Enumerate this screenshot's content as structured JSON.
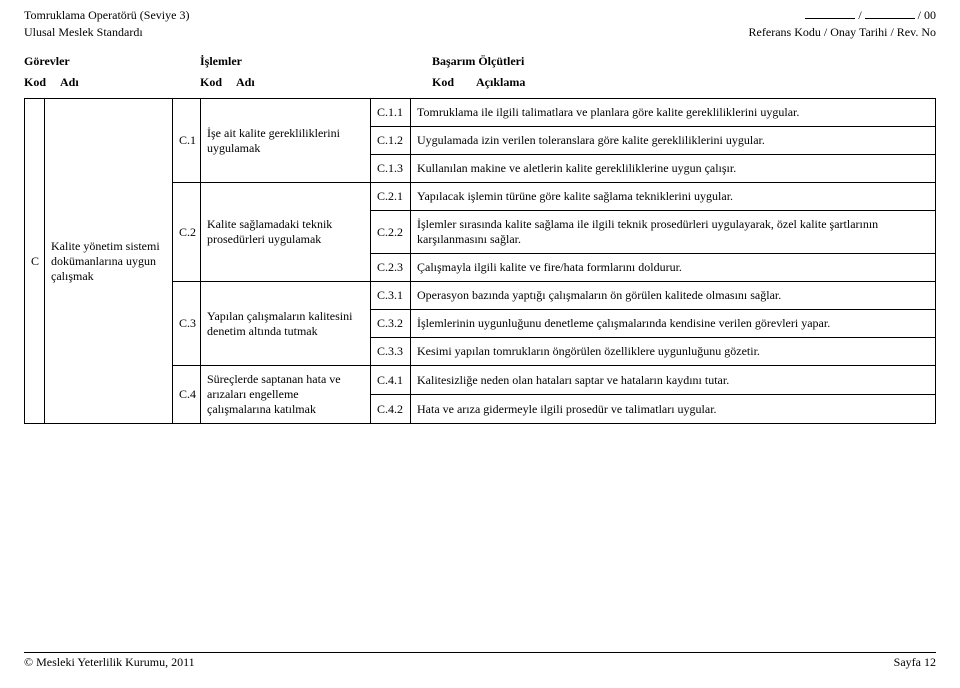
{
  "header": {
    "title_line1": "Tomruklama Operatörü (Seviye 3)",
    "title_line2": "Ulusal Meslek Standardı",
    "right_line1_suffix": " / 00",
    "right_line2": "Referans Kodu / Onay Tarihi / Rev. No"
  },
  "section_labels": {
    "gorevler": "Görevler",
    "islemler": "İşlemler",
    "basarim": "Başarım Ölçütleri",
    "kod": "Kod",
    "adi": "Adı",
    "aciklama": "Açıklama"
  },
  "task": {
    "kod": "C",
    "adi": "Kalite yönetim sistemi dokümanlarına uygun çalışmak"
  },
  "ops": [
    {
      "kod": "C.1",
      "adi": "İşe ait kalite gerekliliklerini uygulamak"
    },
    {
      "kod": "C.2",
      "adi": "Kalite sağlamadaki teknik prosedürleri uygulamak"
    },
    {
      "kod": "C.3",
      "adi": "Yapılan çalışmaların kalitesini denetim altında tutmak"
    },
    {
      "kod": "C.4",
      "adi": "Süreçlerde saptanan hata ve arızaları engelleme çalışmalarına katılmak"
    }
  ],
  "criteria": {
    "c11": {
      "kod": "C.1.1",
      "text": "Tomruklama ile ilgili talimatlara ve planlara göre kalite gerekliliklerini uygular."
    },
    "c12": {
      "kod": "C.1.2",
      "text": "Uygulamada izin verilen toleranslara göre kalite gerekliliklerini uygular."
    },
    "c13": {
      "kod": "C.1.3",
      "text": "Kullanılan makine ve aletlerin kalite gerekliliklerine uygun çalışır."
    },
    "c21": {
      "kod": "C.2.1",
      "text": "Yapılacak işlemin türüne göre kalite sağlama tekniklerini uygular."
    },
    "c22": {
      "kod": "C.2.2",
      "text": "İşlemler sırasında kalite sağlama ile ilgili teknik prosedürleri uygulayarak, özel kalite şartlarının karşılanmasını sağlar."
    },
    "c23": {
      "kod": "C.2.3",
      "text": "Çalışmayla ilgili kalite ve fire/hata formlarını doldurur."
    },
    "c31": {
      "kod": "C.3.1",
      "text": "Operasyon bazında yaptığı çalışmaların ön görülen kalitede olmasını sağlar."
    },
    "c32": {
      "kod": "C.3.2",
      "text": "İşlemlerinin uygunluğunu denetleme çalışmalarında kendisine verilen görevleri yapar."
    },
    "c33": {
      "kod": "C.3.3",
      "text": "Kesimi yapılan tomrukların öngörülen özelliklere uygunluğunu gözetir."
    },
    "c41": {
      "kod": "C.4.1",
      "text": "Kalitesizliğe neden olan hataları saptar ve hataların kaydını tutar."
    },
    "c42": {
      "kod": "C.4.2",
      "text": "Hata ve arıza gidermeyle ilgili prosedür ve talimatları uygular."
    }
  },
  "footer": {
    "left": "© Mesleki Yeterlilik Kurumu, 2011",
    "right": "Sayfa 12"
  }
}
